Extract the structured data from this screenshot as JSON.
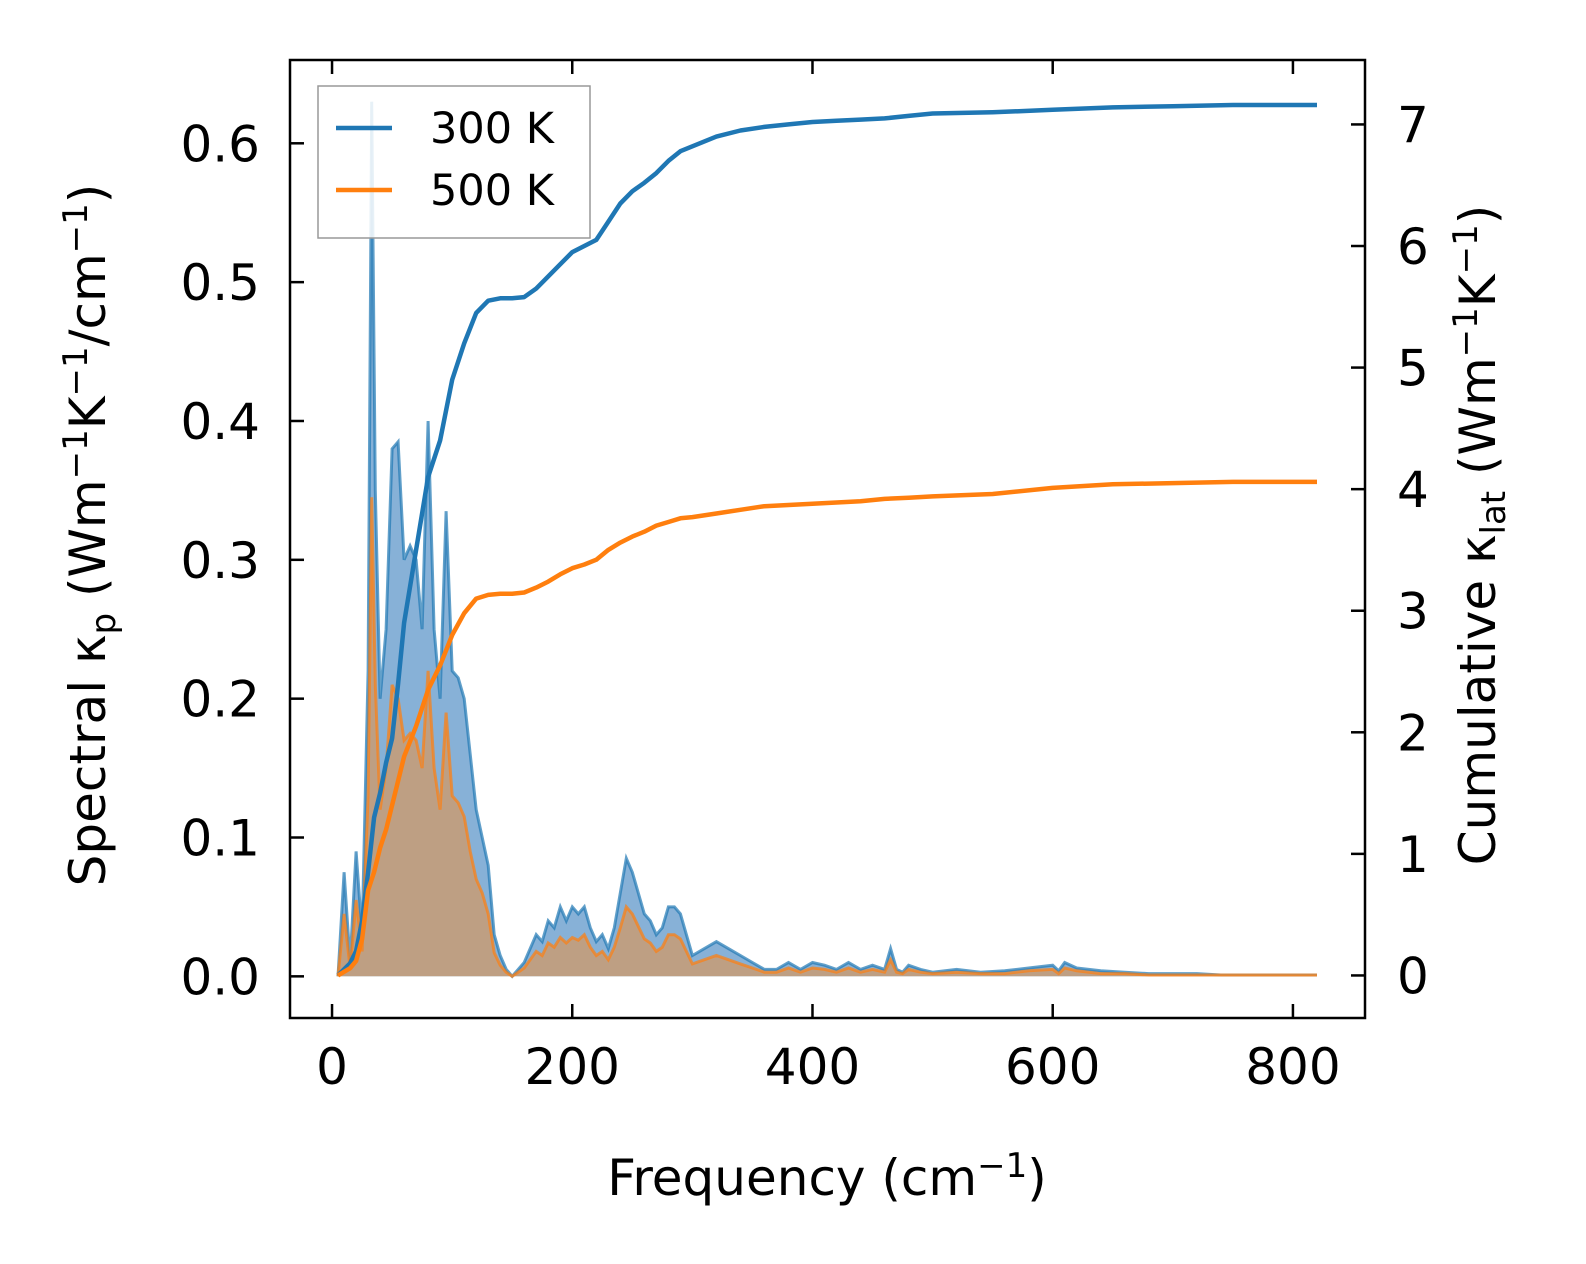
{
  "chart_data": {
    "type": "line",
    "title": "",
    "xlabel": {
      "main": "Frequency (cm",
      "sup": "−1",
      "end": ")"
    },
    "ylabel_left": {
      "main": "Spectral κ",
      "sub": "p",
      "mid": " (Wm",
      "sup1": "−1",
      "k": "K",
      "sup2": "−1",
      "per": "/cm",
      "sup3": "−1",
      "end": ")"
    },
    "ylabel_right": {
      "main": "Cumulative κ",
      "sub": "lat",
      "mid": " (Wm",
      "sup1": "−1",
      "k": "K",
      "sup2": "−1",
      "end": ")"
    },
    "xlim": [
      -35,
      860
    ],
    "ylim_left": [
      -0.03,
      0.66
    ],
    "ylim_right": [
      -0.35,
      7.53
    ],
    "x_ticks": [
      0,
      200,
      400,
      600,
      800
    ],
    "x_tick_labels": [
      "0",
      "200",
      "400",
      "600",
      "800"
    ],
    "y_left_ticks": [
      0.0,
      0.1,
      0.2,
      0.3,
      0.4,
      0.5,
      0.6
    ],
    "y_left_tick_labels": [
      "0.0",
      "0.1",
      "0.2",
      "0.3",
      "0.4",
      "0.5",
      "0.6"
    ],
    "y_right_ticks": [
      0,
      1,
      2,
      3,
      4,
      5,
      6,
      7
    ],
    "y_right_tick_labels": [
      "0",
      "1",
      "2",
      "3",
      "4",
      "5",
      "6",
      "7"
    ],
    "legend": {
      "position": "top-left",
      "entries": [
        "300 K",
        "500 K"
      ]
    },
    "colors": {
      "300K": "#1f77b4",
      "500K": "#ff7f0e",
      "fill300": "#7aa9d3",
      "fill500": "#c89c74"
    },
    "series": [
      {
        "name": "300 K",
        "spectral": {
          "x": [
            5,
            10,
            15,
            20,
            25,
            30,
            33,
            36,
            40,
            45,
            50,
            55,
            60,
            65,
            70,
            75,
            80,
            85,
            90,
            95,
            100,
            105,
            110,
            115,
            120,
            125,
            130,
            135,
            140,
            145,
            150,
            160,
            170,
            175,
            180,
            185,
            190,
            195,
            200,
            205,
            210,
            215,
            220,
            225,
            230,
            235,
            240,
            245,
            250,
            255,
            260,
            265,
            270,
            275,
            280,
            285,
            290,
            295,
            300,
            310,
            320,
            330,
            340,
            350,
            360,
            370,
            380,
            390,
            400,
            410,
            420,
            430,
            440,
            450,
            460,
            465,
            470,
            475,
            480,
            490,
            500,
            520,
            540,
            560,
            580,
            600,
            605,
            610,
            620,
            640,
            660,
            680,
            700,
            720,
            740,
            760,
            780,
            800,
            820
          ],
          "y": [
            0.0,
            0.075,
            0.01,
            0.09,
            0.03,
            0.22,
            0.63,
            0.35,
            0.2,
            0.25,
            0.38,
            0.385,
            0.3,
            0.31,
            0.3,
            0.25,
            0.4,
            0.25,
            0.2,
            0.335,
            0.22,
            0.215,
            0.2,
            0.16,
            0.12,
            0.1,
            0.08,
            0.03,
            0.015,
            0.005,
            0.0,
            0.01,
            0.03,
            0.025,
            0.04,
            0.035,
            0.05,
            0.04,
            0.05,
            0.045,
            0.05,
            0.035,
            0.025,
            0.03,
            0.02,
            0.035,
            0.06,
            0.085,
            0.075,
            0.06,
            0.045,
            0.04,
            0.03,
            0.035,
            0.05,
            0.05,
            0.045,
            0.03,
            0.015,
            0.02,
            0.025,
            0.02,
            0.015,
            0.01,
            0.005,
            0.005,
            0.01,
            0.005,
            0.01,
            0.008,
            0.005,
            0.01,
            0.005,
            0.008,
            0.005,
            0.02,
            0.005,
            0.003,
            0.008,
            0.005,
            0.003,
            0.005,
            0.003,
            0.004,
            0.006,
            0.008,
            0.004,
            0.01,
            0.006,
            0.004,
            0.003,
            0.002,
            0.002,
            0.002,
            0.001,
            0.001,
            0.001,
            0.001,
            0.001
          ]
        },
        "cumulative": {
          "x": [
            5,
            15,
            20,
            25,
            30,
            35,
            40,
            45,
            50,
            55,
            60,
            70,
            80,
            90,
            100,
            110,
            120,
            130,
            140,
            150,
            160,
            170,
            180,
            190,
            200,
            210,
            220,
            230,
            240,
            250,
            260,
            270,
            280,
            290,
            300,
            320,
            340,
            360,
            380,
            400,
            420,
            440,
            460,
            480,
            500,
            550,
            600,
            650,
            700,
            750,
            820
          ],
          "y": [
            0,
            0.1,
            0.2,
            0.45,
            0.85,
            1.3,
            1.5,
            1.75,
            1.95,
            2.4,
            2.9,
            3.5,
            4.1,
            4.4,
            4.9,
            5.2,
            5.45,
            5.55,
            5.57,
            5.57,
            5.58,
            5.65,
            5.75,
            5.85,
            5.95,
            6.0,
            6.05,
            6.2,
            6.35,
            6.45,
            6.52,
            6.6,
            6.7,
            6.78,
            6.82,
            6.9,
            6.95,
            6.98,
            7.0,
            7.02,
            7.03,
            7.04,
            7.05,
            7.07,
            7.09,
            7.1,
            7.12,
            7.14,
            7.15,
            7.16,
            7.16
          ]
        }
      },
      {
        "name": "500 K",
        "spectral": {
          "x": [
            5,
            10,
            15,
            20,
            25,
            30,
            33,
            36,
            40,
            45,
            50,
            55,
            60,
            65,
            70,
            75,
            80,
            85,
            90,
            95,
            100,
            105,
            110,
            115,
            120,
            125,
            130,
            135,
            140,
            145,
            150,
            160,
            170,
            175,
            180,
            185,
            190,
            195,
            200,
            205,
            210,
            215,
            220,
            225,
            230,
            235,
            240,
            245,
            250,
            255,
            260,
            265,
            270,
            275,
            280,
            285,
            290,
            295,
            300,
            310,
            320,
            330,
            340,
            350,
            360,
            370,
            380,
            390,
            400,
            410,
            420,
            430,
            440,
            450,
            460,
            465,
            470,
            475,
            480,
            490,
            500,
            520,
            540,
            560,
            580,
            600,
            605,
            610,
            620,
            640,
            660,
            680,
            700,
            720,
            740,
            760,
            780,
            800,
            820
          ],
          "y": [
            0.0,
            0.045,
            0.006,
            0.055,
            0.018,
            0.13,
            0.345,
            0.21,
            0.12,
            0.15,
            0.21,
            0.2,
            0.17,
            0.175,
            0.17,
            0.15,
            0.22,
            0.15,
            0.12,
            0.19,
            0.13,
            0.125,
            0.115,
            0.09,
            0.07,
            0.06,
            0.045,
            0.017,
            0.008,
            0.003,
            0.0,
            0.006,
            0.018,
            0.015,
            0.024,
            0.021,
            0.028,
            0.024,
            0.028,
            0.026,
            0.03,
            0.021,
            0.015,
            0.018,
            0.012,
            0.021,
            0.035,
            0.05,
            0.045,
            0.036,
            0.027,
            0.024,
            0.018,
            0.021,
            0.03,
            0.03,
            0.027,
            0.018,
            0.009,
            0.012,
            0.015,
            0.012,
            0.009,
            0.006,
            0.003,
            0.003,
            0.006,
            0.003,
            0.006,
            0.005,
            0.003,
            0.006,
            0.003,
            0.005,
            0.003,
            0.012,
            0.003,
            0.002,
            0.005,
            0.003,
            0.002,
            0.003,
            0.002,
            0.002,
            0.004,
            0.005,
            0.002,
            0.006,
            0.004,
            0.002,
            0.002,
            0.001,
            0.001,
            0.001,
            0.001,
            0.001,
            0.001,
            0.001,
            0.001
          ]
        },
        "cumulative": {
          "x": [
            5,
            15,
            20,
            25,
            30,
            35,
            40,
            45,
            50,
            55,
            60,
            70,
            80,
            90,
            100,
            110,
            120,
            130,
            140,
            150,
            160,
            170,
            180,
            190,
            200,
            210,
            220,
            230,
            240,
            250,
            260,
            270,
            280,
            290,
            300,
            320,
            340,
            360,
            380,
            400,
            420,
            440,
            460,
            480,
            500,
            550,
            600,
            650,
            700,
            750,
            820
          ],
          "y": [
            0,
            0.06,
            0.12,
            0.3,
            0.7,
            0.85,
            1.05,
            1.2,
            1.4,
            1.6,
            1.8,
            2.05,
            2.35,
            2.55,
            2.8,
            2.98,
            3.1,
            3.13,
            3.14,
            3.14,
            3.15,
            3.19,
            3.24,
            3.3,
            3.35,
            3.38,
            3.42,
            3.5,
            3.56,
            3.61,
            3.65,
            3.7,
            3.73,
            3.76,
            3.77,
            3.8,
            3.83,
            3.86,
            3.87,
            3.88,
            3.89,
            3.9,
            3.92,
            3.93,
            3.94,
            3.96,
            4.01,
            4.04,
            4.05,
            4.06,
            4.06
          ]
        }
      }
    ]
  }
}
